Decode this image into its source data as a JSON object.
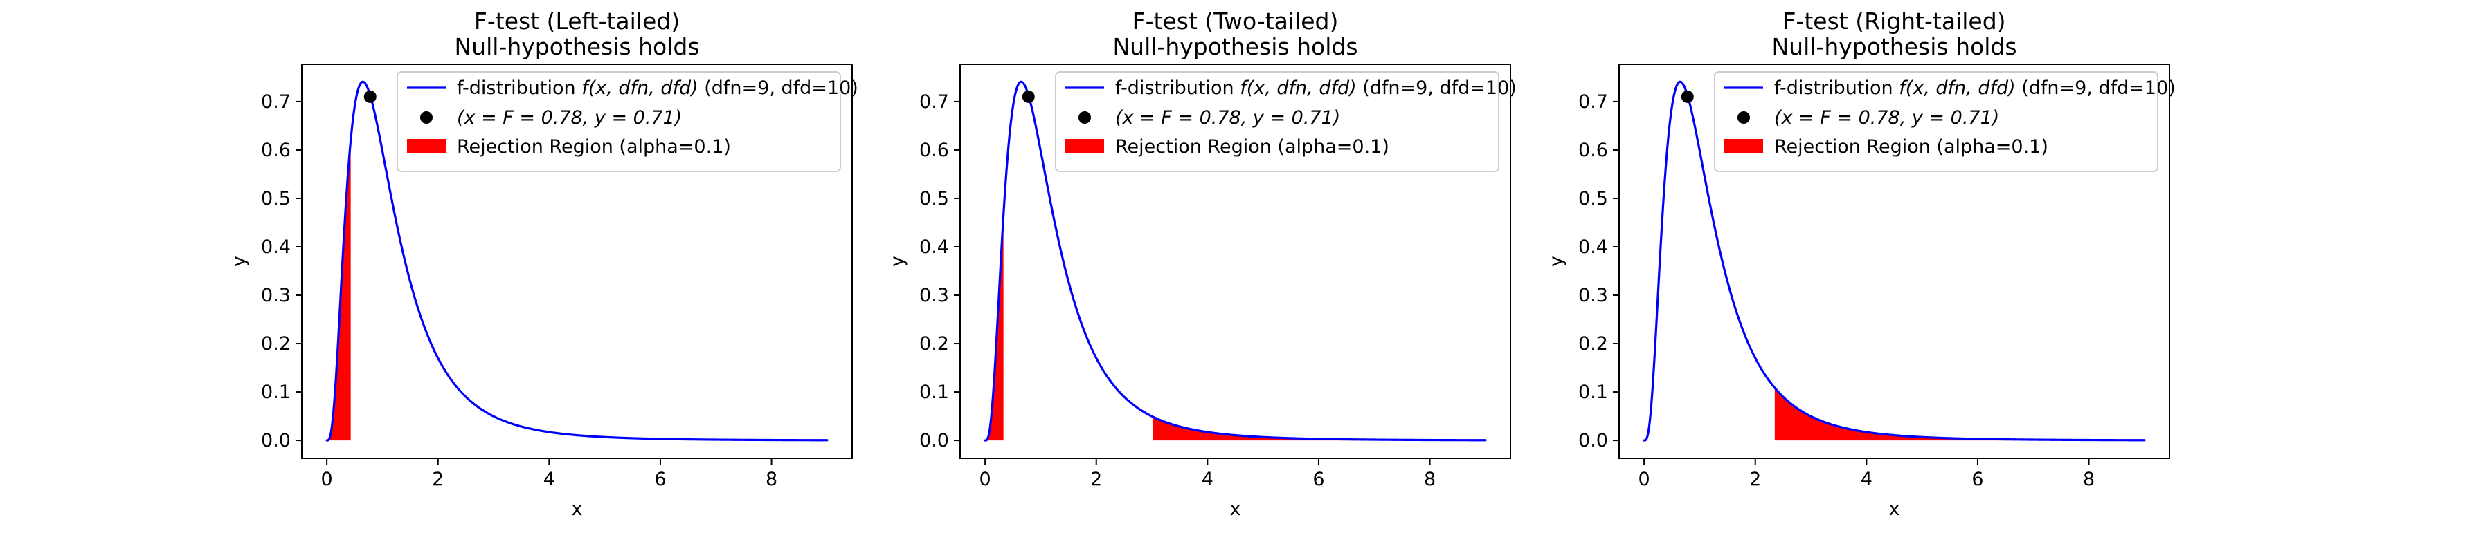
{
  "chart_data": [
    {
      "type": "line",
      "title": "F-test (Left-tailed)",
      "subtitle": "Null-hypothesis holds",
      "xlabel": "x",
      "ylabel": "y",
      "xlim": [
        -0.45,
        9.45
      ],
      "ylim": [
        -0.037,
        0.777
      ],
      "xticks": [
        0,
        2,
        4,
        6,
        8
      ],
      "yticks": [
        0.0,
        0.1,
        0.2,
        0.3,
        0.4,
        0.5,
        0.6,
        0.7
      ],
      "grid": false,
      "legend_position": "top-right",
      "curve": {
        "label": "f-distribution $f(x, dfn, dfd)$ (dfn=9, dfd=10)",
        "dfn": 9,
        "dfd": 10,
        "x_range": [
          0,
          9
        ],
        "color": "#0000ff"
      },
      "point": {
        "label": "$(x = F = 0.78, y = 0.71)$",
        "x": 0.78,
        "y": 0.71,
        "color": "#000000"
      },
      "rejection_regions": [
        {
          "from": 0,
          "to": 0.43
        }
      ],
      "rejection_label": "Rejection Region (alpha=0.1)",
      "rejection_color": "#ff0000"
    },
    {
      "type": "line",
      "title": "F-test (Two-tailed)",
      "subtitle": "Null-hypothesis holds",
      "xlabel": "x",
      "ylabel": "y",
      "xlim": [
        -0.45,
        9.45
      ],
      "ylim": [
        -0.037,
        0.777
      ],
      "xticks": [
        0,
        2,
        4,
        6,
        8
      ],
      "yticks": [
        0.0,
        0.1,
        0.2,
        0.3,
        0.4,
        0.5,
        0.6,
        0.7
      ],
      "grid": false,
      "legend_position": "top-right",
      "curve": {
        "label": "f-distribution $f(x, dfn, dfd)$ (dfn=9, dfd=10)",
        "dfn": 9,
        "dfd": 10,
        "x_range": [
          0,
          9
        ],
        "color": "#0000ff"
      },
      "point": {
        "label": "$(x = F = 0.78, y = 0.71)$",
        "x": 0.78,
        "y": 0.71,
        "color": "#000000"
      },
      "rejection_regions": [
        {
          "from": 0,
          "to": 0.33
        },
        {
          "from": 3.02,
          "to": 9
        }
      ],
      "rejection_label": "Rejection Region (alpha=0.1)",
      "rejection_color": "#ff0000"
    },
    {
      "type": "line",
      "title": "F-test (Right-tailed)",
      "subtitle": "Null-hypothesis holds",
      "xlabel": "x",
      "ylabel": "y",
      "xlim": [
        -0.45,
        9.45
      ],
      "ylim": [
        -0.037,
        0.777
      ],
      "xticks": [
        0,
        2,
        4,
        6,
        8
      ],
      "yticks": [
        0.0,
        0.1,
        0.2,
        0.3,
        0.4,
        0.5,
        0.6,
        0.7
      ],
      "grid": false,
      "legend_position": "top-right",
      "curve": {
        "label": "f-distribution $f(x, dfn, dfd)$ (dfn=9, dfd=10)",
        "dfn": 9,
        "dfd": 10,
        "x_range": [
          0,
          9
        ],
        "color": "#0000ff"
      },
      "point": {
        "label": "$(x = F = 0.78, y = 0.71)$",
        "x": 0.78,
        "y": 0.71,
        "color": "#000000"
      },
      "rejection_regions": [
        {
          "from": 2.35,
          "to": 9
        }
      ],
      "rejection_label": "Rejection Region (alpha=0.1)",
      "rejection_color": "#ff0000"
    }
  ]
}
